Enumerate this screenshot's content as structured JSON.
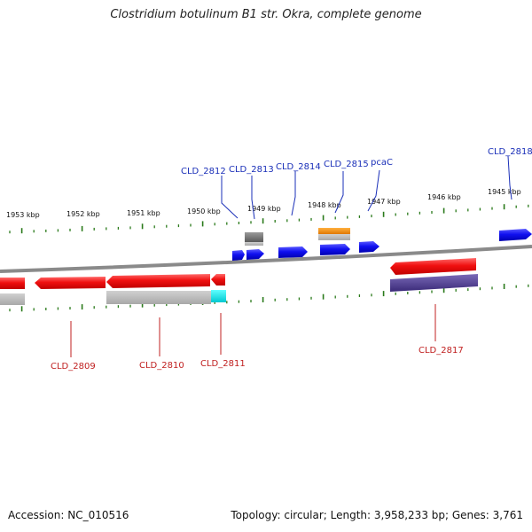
{
  "title": "Clostridium botulinum B1 str. Okra, complete genome",
  "footer": {
    "accession": "Accession: NC_010516",
    "summary": "Topology: circular; Length: 3,958,233 bp; Genes: 3,761"
  },
  "scale_labels": [
    "1953 kbp",
    "1952 kbp",
    "1951 kbp",
    "1950 kbp",
    "1949 kbp",
    "1948 kbp",
    "1947 kbp",
    "1946 kbp",
    "1945 kbp"
  ],
  "top_gene_labels": [
    "CLD_2812",
    "CLD_2813",
    "CLD_2814",
    "CLD_2815",
    "pcaC",
    "CLD_2818"
  ],
  "bottom_gene_labels": [
    "CLD_2809",
    "CLD_2810",
    "CLD_2811",
    "CLD_2817"
  ],
  "colors": {
    "backbone": "#808080",
    "tick": "#2a7a1a",
    "forward_gene": "#1010e8",
    "reverse_gene": "#e01010",
    "gene_shadow": "#b8b8b8",
    "orange_gene": "#f08a00",
    "cyan_gene": "#00e0e8",
    "purple_gene": "#4a3a8a",
    "gray_gene": "#707070",
    "label_top": "#1a2fb8",
    "label_bottom": "#c02020"
  }
}
